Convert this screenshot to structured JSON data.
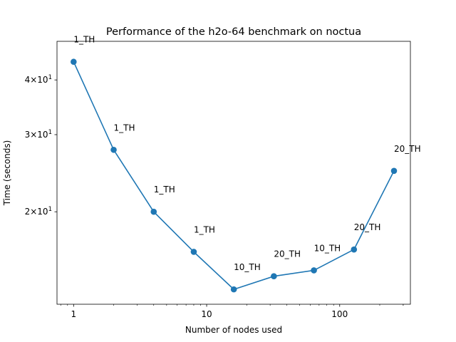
{
  "chart_data": {
    "type": "line",
    "title": "Performance of the h2o-64 benchmark on noctua",
    "xlabel": "Number of nodes used",
    "ylabel": "Time (seconds)",
    "xscale": "log",
    "yscale": "log",
    "xlim": [
      0.75,
      340
    ],
    "ylim": [
      12.3,
      49
    ],
    "grid": false,
    "legend": "none",
    "x_ticks": [
      {
        "value": 1,
        "label": "1"
      },
      {
        "value": 10,
        "label": "10"
      },
      {
        "value": 100,
        "label": "100"
      }
    ],
    "y_ticks": [
      {
        "value": 20,
        "base": "2",
        "exp": "1"
      },
      {
        "value": 30,
        "base": "3",
        "exp": "1"
      },
      {
        "value": 40,
        "base": "4",
        "exp": "1"
      }
    ],
    "series": [
      {
        "color": "#1f77b4",
        "points": [
          {
            "x": 1,
            "y": 44.0,
            "label": "1_TH"
          },
          {
            "x": 2,
            "y": 27.7,
            "label": "1_TH"
          },
          {
            "x": 4,
            "y": 20.0,
            "label": "1_TH"
          },
          {
            "x": 8,
            "y": 16.2,
            "label": "1_TH"
          },
          {
            "x": 16,
            "y": 13.3,
            "label": "10_TH"
          },
          {
            "x": 32,
            "y": 14.25,
            "label": "20_TH"
          },
          {
            "x": 64,
            "y": 14.7,
            "label": "10_TH"
          },
          {
            "x": 128,
            "y": 16.4,
            "label": "20_TH"
          },
          {
            "x": 256,
            "y": 24.8,
            "label": "20_TH"
          }
        ]
      }
    ]
  }
}
